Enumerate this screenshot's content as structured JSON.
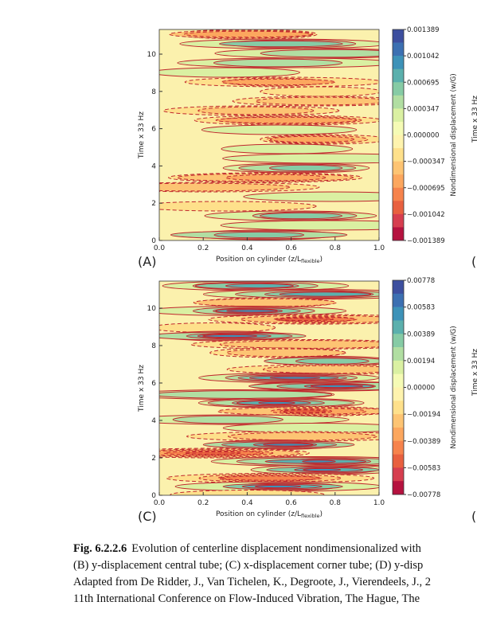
{
  "figures": [
    {
      "panel": "(A)",
      "y_label": "Time x 33 Hz",
      "x_label": "Position on cylinder (z/L",
      "x_label_sub": "flexible",
      "x_label_end": ")",
      "xticks": [
        "0.0",
        "0.2",
        "0.4",
        "0.6",
        "0.8",
        "1.0"
      ],
      "yticks": [
        "0",
        "2",
        "4",
        "6",
        "8",
        "10"
      ],
      "colorbar_label": "Nondimensional  displacement (w/G)",
      "colorbar_ticks": [
        "0.001389",
        "0.001042",
        "0.000695",
        "0.000347",
        "0.000000",
        "−0.000347",
        "−0.000695",
        "−0.001042",
        "−0.001389"
      ],
      "right_panel_y_label": "Time x 33 Hz",
      "right_panel_label": "("
    },
    {
      "panel": "(C)",
      "y_label": "Time x 33 Hz",
      "x_label": "Position on cylinder (z/L",
      "x_label_sub": "flexible",
      "x_label_end": ")",
      "xticks": [
        "0.0",
        "0.2",
        "0.4",
        "0.6",
        "0.8",
        "1.0"
      ],
      "yticks": [
        "0",
        "2",
        "4",
        "6",
        "8",
        "10"
      ],
      "colorbar_label": "Nondimensional  displacement (w/G)",
      "colorbar_ticks": [
        "0.00778",
        "0.00583",
        "0.00389",
        "0.00194",
        "0.00000",
        "−0.00194",
        "−0.00389",
        "−0.00583",
        "−0.00778"
      ],
      "right_panel_y_label": "Time x 33 Hz",
      "right_panel_label": "("
    }
  ],
  "caption": {
    "label": "Fig. 6.2.2.6",
    "lines": [
      "Evolution of centerline displacement nondimensionalized with",
      "(B) y-displacement central tube; (C) x-displacement corner tube; (D) y-disp",
      "Adapted from De Ridder, J., Van Tichelen, K., Degroote, J., Vierendeels, J., 2",
      "11th International Conference on Flow-Induced Vibration, The Hague, The"
    ]
  }
}
